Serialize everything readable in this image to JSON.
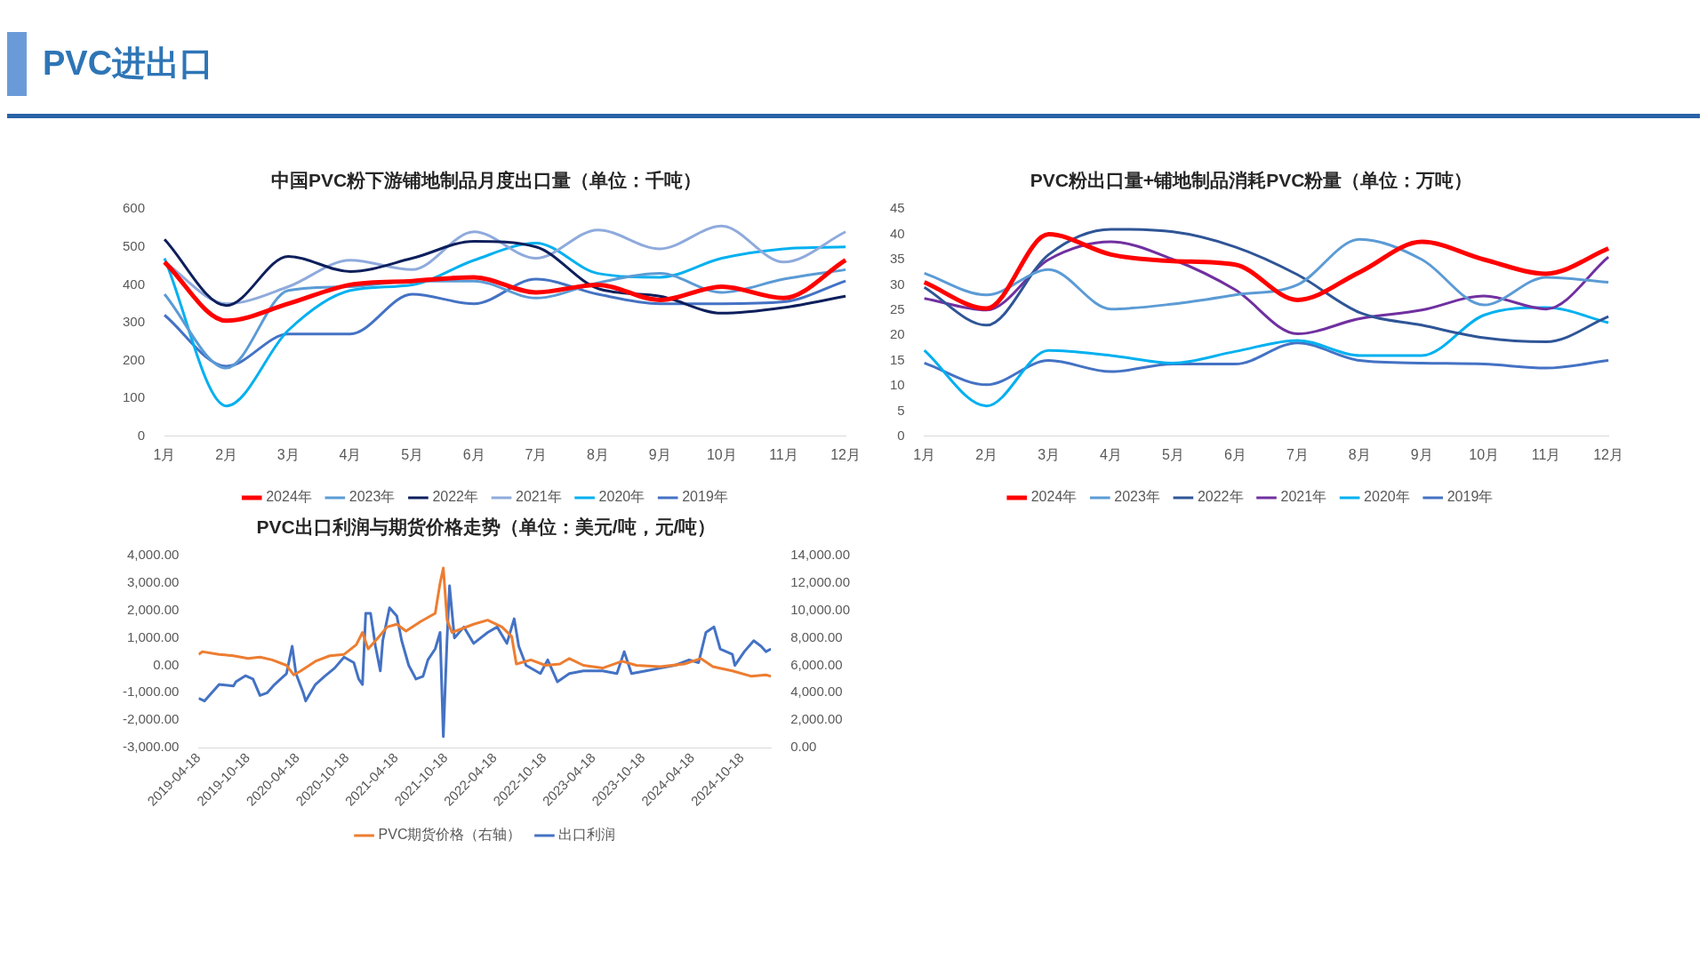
{
  "chart_data": [
    {
      "type": "other",
      "title": "PVC进出口"
    },
    {
      "type": "line",
      "title": "中国PVC粉下游铺地制品月度出口量（单位：千吨）",
      "categories": [
        "1月",
        "2月",
        "3月",
        "4月",
        "5月",
        "6月",
        "7月",
        "8月",
        "9月",
        "10月",
        "11月",
        "12月"
      ],
      "ylim": [
        0,
        600
      ],
      "yticks": [
        0,
        100,
        200,
        300,
        400,
        500,
        600
      ],
      "grid": false,
      "legend": "bottom",
      "marker": "none",
      "series": [
        {
          "name": "2019年",
          "color": "#4472c4",
          "values": [
            320,
            185,
            270,
            270,
            375,
            350,
            415,
            375,
            350,
            350,
            355,
            410
          ]
        },
        {
          "name": "2020年",
          "color": "#00b0f0",
          "values": [
            470,
            80,
            280,
            385,
            400,
            465,
            510,
            430,
            420,
            470,
            495,
            500
          ]
        },
        {
          "name": "2021年",
          "color": "#8faadc",
          "values": [
            460,
            350,
            395,
            465,
            440,
            540,
            470,
            545,
            495,
            555,
            460,
            540
          ]
        },
        {
          "name": "2022年",
          "color": "#0d1f5c",
          "values": [
            520,
            345,
            475,
            435,
            470,
            515,
            500,
            390,
            370,
            325,
            340,
            370
          ]
        },
        {
          "name": "2023年",
          "color": "#5b9bd5",
          "values": [
            375,
            180,
            385,
            395,
            410,
            410,
            365,
            405,
            430,
            380,
            415,
            440
          ]
        },
        {
          "name": "2024年",
          "color": "#ff0000",
          "values": [
            460,
            305,
            350,
            400,
            410,
            420,
            380,
            400,
            360,
            395,
            365,
            465
          ]
        }
      ]
    },
    {
      "type": "line",
      "title": "PVC粉出口量+铺地制品消耗PVC粉量（单位：万吨）",
      "categories": [
        "1月",
        "2月",
        "3月",
        "4月",
        "5月",
        "6月",
        "7月",
        "8月",
        "9月",
        "10月",
        "11月",
        "12月"
      ],
      "ylim": [
        0,
        45
      ],
      "yticks": [
        0,
        5,
        10,
        15,
        20,
        25,
        30,
        35,
        40,
        45
      ],
      "grid": false,
      "legend": "bottom",
      "marker": "none",
      "series": [
        {
          "name": "2019年",
          "color": "#4472c4",
          "values": [
            14.5,
            10.2,
            15,
            12.8,
            14.3,
            14.3,
            18.5,
            15,
            14.5,
            14.3,
            13.5,
            15
          ]
        },
        {
          "name": "2020年",
          "color": "#00b0f0",
          "values": [
            17,
            6,
            17,
            16,
            14.5,
            16.8,
            19,
            16,
            16,
            24,
            25.5,
            22.5
          ]
        },
        {
          "name": "2021年",
          "color": "#7030a0",
          "values": [
            27.3,
            25,
            35,
            38.5,
            35,
            29,
            20.3,
            23.3,
            25,
            27.8,
            25.2,
            35.5
          ]
        },
        {
          "name": "2022年",
          "color": "#2f5597",
          "values": [
            29.5,
            22,
            36,
            41,
            40.5,
            37.5,
            32,
            24.5,
            22,
            19.5,
            18.7,
            23.7
          ]
        },
        {
          "name": "2023年",
          "color": "#5b9bd5",
          "values": [
            32.3,
            28,
            33,
            25.2,
            26.2,
            28,
            30,
            39,
            35,
            26,
            31.5,
            30.5
          ]
        },
        {
          "name": "2024年",
          "color": "#ff0000",
          "values": [
            30.5,
            25.3,
            40,
            36,
            34.7,
            34,
            27,
            32.5,
            38.5,
            35,
            32.2,
            37.2
          ]
        }
      ]
    },
    {
      "type": "line",
      "title": "PVC出口利润与期货价格走势（单位：美元/吨，元/吨）",
      "xlim": [
        "2019-04-18",
        "2025-02-02"
      ],
      "xticks": [
        "2019-04-18",
        "2019-10-18",
        "2020-04-18",
        "2020-10-18",
        "2021-04-18",
        "2021-10-18",
        "2022-04-18",
        "2022-10-18",
        "2023-04-18",
        "2023-10-18",
        "2024-04-18",
        "2024-10-18"
      ],
      "ylim": [
        -3000,
        4000
      ],
      "yticks": [
        {
          "value": -3000,
          "label": "-3,000.00"
        },
        {
          "value": -2000,
          "label": "-2,000.00"
        },
        {
          "value": -1000,
          "label": "-1,000.00"
        },
        {
          "value": 0,
          "label": "0.00"
        },
        {
          "value": 1000,
          "label": "1,000.00"
        },
        {
          "value": 2000,
          "label": "2,000.00"
        },
        {
          "value": 3000,
          "label": "3,000.00"
        },
        {
          "value": 4000,
          "label": "4,000.00"
        }
      ],
      "y2lim": [
        0,
        14000
      ],
      "y2ticks": [
        {
          "value": 0,
          "label": "0.00"
        },
        {
          "value": 2000,
          "label": "2,000.00"
        },
        {
          "value": 4000,
          "label": "4,000.00"
        },
        {
          "value": 6000,
          "label": "6,000.00"
        },
        {
          "value": 8000,
          "label": "8,000.00"
        },
        {
          "value": 10000,
          "label": "10,000.00"
        },
        {
          "value": 12000,
          "label": "12,000.00"
        },
        {
          "value": 14000,
          "label": "14,000.00"
        }
      ],
      "grid": false,
      "legend": "bottom",
      "marker": "none",
      "series": [
        {
          "name": "出口利润",
          "color": "#4472c4",
          "x": [
            "2019-04-18",
            "2019-05-10",
            "2019-07-03",
            "2019-08-25",
            "2019-09-03",
            "2019-10-08",
            "2019-11-05",
            "2019-12-01",
            "2019-12-28",
            "2020-01-24",
            "2020-03-08",
            "2020-03-29",
            "2020-04-12",
            "2020-05-09",
            "2020-05-18",
            "2020-06-23",
            "2020-07-27",
            "2020-09-02",
            "2020-10-07",
            "2020-11-12",
            "2020-11-30",
            "2020-12-14",
            "2020-12-26",
            "2021-01-13",
            "2021-01-31",
            "2021-02-18",
            "2021-02-27",
            "2021-03-24",
            "2021-04-20",
            "2021-05-08",
            "2021-06-03",
            "2021-06-30",
            "2021-07-26",
            "2021-08-13",
            "2021-09-09",
            "2021-09-27",
            "2021-10-02",
            "2021-10-09",
            "2021-10-23",
            "2021-11-01",
            "2021-11-19",
            "2021-12-24",
            "2022-01-29",
            "2022-03-22",
            "2022-04-26",
            "2022-06-01",
            "2022-06-28",
            "2022-07-15",
            "2022-08-11",
            "2022-10-03",
            "2022-10-30",
            "2022-12-05",
            "2023-01-18",
            "2023-03-11",
            "2023-05-21",
            "2023-07-13",
            "2023-08-09",
            "2023-09-05",
            "2023-10-28",
            "2023-12-21",
            "2024-02-12",
            "2024-04-05",
            "2024-05-10",
            "2024-06-06",
            "2024-07-06",
            "2024-07-29",
            "2024-09-12",
            "2024-09-21",
            "2024-10-26",
            "2024-11-30",
            "2024-12-27",
            "2025-01-14",
            "2025-02-02"
          ],
          "values": [
            -1200,
            -1300,
            -700,
            -750,
            -600,
            -380,
            -500,
            -1100,
            -1000,
            -700,
            -300,
            700,
            -300,
            -1000,
            -1300,
            -700,
            -400,
            -100,
            300,
            100,
            -500,
            -700,
            1900,
            1900,
            700,
            -200,
            900,
            2100,
            1800,
            900,
            0,
            -500,
            -400,
            200,
            600,
            1200,
            -400,
            -2600,
            1000,
            2900,
            1000,
            1400,
            800,
            1200,
            1400,
            800,
            1700,
            700,
            0,
            -300,
            200,
            -600,
            -300,
            -200,
            -200,
            -300,
            500,
            -300,
            -200,
            -100,
            0,
            200,
            100,
            1200,
            1400,
            600,
            400,
            0,
            500,
            900,
            700,
            500,
            600
          ]
        },
        {
          "name": "PVC期货价格（右轴）",
          "color": "#ed7d31",
          "axis": "y2",
          "x": [
            "2019-04-18",
            "2019-05-02",
            "2019-07-03",
            "2019-08-25",
            "2019-10-18",
            "2019-12-01",
            "2020-01-15",
            "2020-03-08",
            "2020-04-04",
            "2020-04-30",
            "2020-06-23",
            "2020-08-15",
            "2020-10-07",
            "2020-11-21",
            "2020-12-14",
            "2021-01-04",
            "2021-02-09",
            "2021-03-15",
            "2021-04-20",
            "2021-05-24",
            "2021-07-17",
            "2021-09-09",
            "2021-09-27",
            "2021-10-09",
            "2021-10-23",
            "2021-11-10",
            "2022-01-29",
            "2022-03-22",
            "2022-05-14",
            "2022-06-19",
            "2022-07-06",
            "2022-08-29",
            "2022-10-21",
            "2022-12-14",
            "2023-01-18",
            "2023-03-11",
            "2023-05-21",
            "2023-08-01",
            "2023-09-23",
            "2023-12-21",
            "2024-03-18",
            "2024-05-18",
            "2024-07-02",
            "2024-09-12",
            "2024-11-22",
            "2025-01-14",
            "2025-02-02"
          ],
          "values": [
            6800,
            7000,
            6800,
            6700,
            6500,
            6600,
            6400,
            6000,
            5300,
            5600,
            6300,
            6700,
            6800,
            7500,
            8400,
            7200,
            8000,
            8800,
            9000,
            8500,
            9200,
            9800,
            12000,
            13100,
            9300,
            8400,
            9000,
            9300,
            8800,
            8100,
            6100,
            6400,
            6000,
            6100,
            6500,
            6000,
            5800,
            6300,
            6000,
            5900,
            6100,
            6500,
            5900,
            5600,
            5200,
            5300,
            5200
          ]
        }
      ]
    }
  ]
}
